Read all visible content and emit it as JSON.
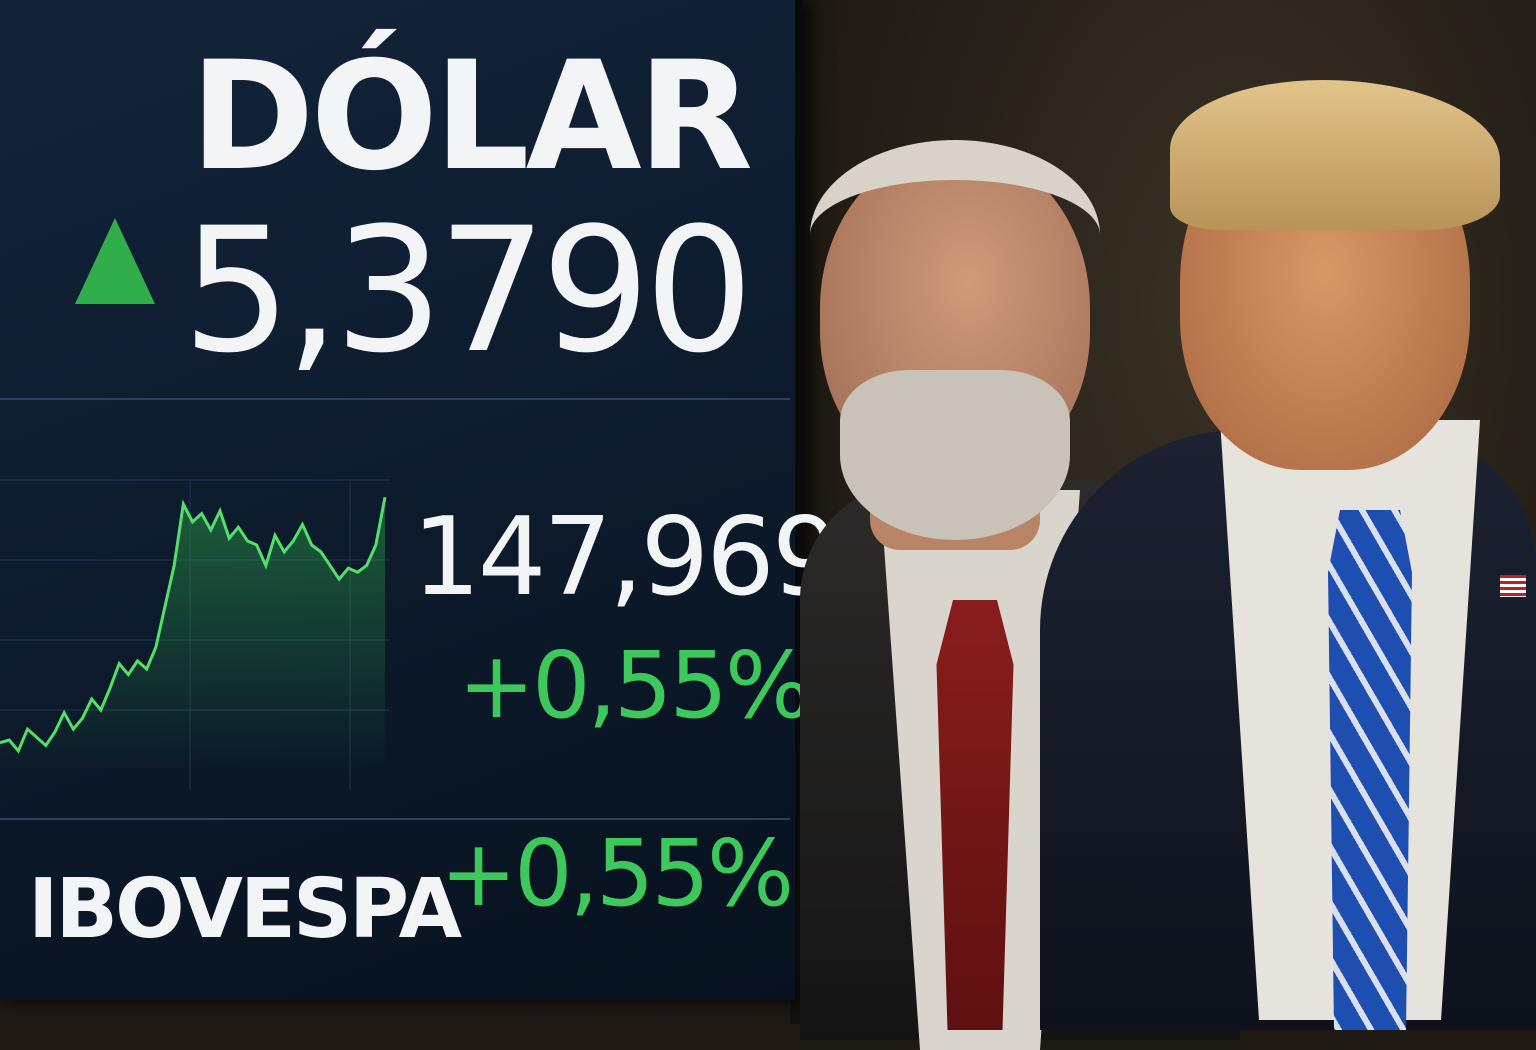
{
  "screen": {
    "title": "DÓLAR",
    "direction_icon": "up-triangle-icon",
    "price": "5,3790",
    "index_value": "147,969",
    "index_change": "+0,55%",
    "index_name": "IBOVESPA",
    "index_name_change": "+0,55%",
    "colors": {
      "positive": "#3cc85a",
      "background": "#0c1a2b",
      "text": "#f2f4f6"
    }
  },
  "chart_data": {
    "type": "area",
    "values": [
      20,
      22,
      14,
      30,
      24,
      18,
      28,
      42,
      30,
      38,
      52,
      44,
      60,
      78,
      70,
      80,
      74,
      90,
      120,
      150,
      195,
      182,
      188,
      176,
      190,
      170,
      178,
      168,
      165,
      150,
      172,
      160,
      168,
      180,
      165,
      160,
      150,
      140,
      148,
      145,
      150,
      165,
      200
    ]
  }
}
